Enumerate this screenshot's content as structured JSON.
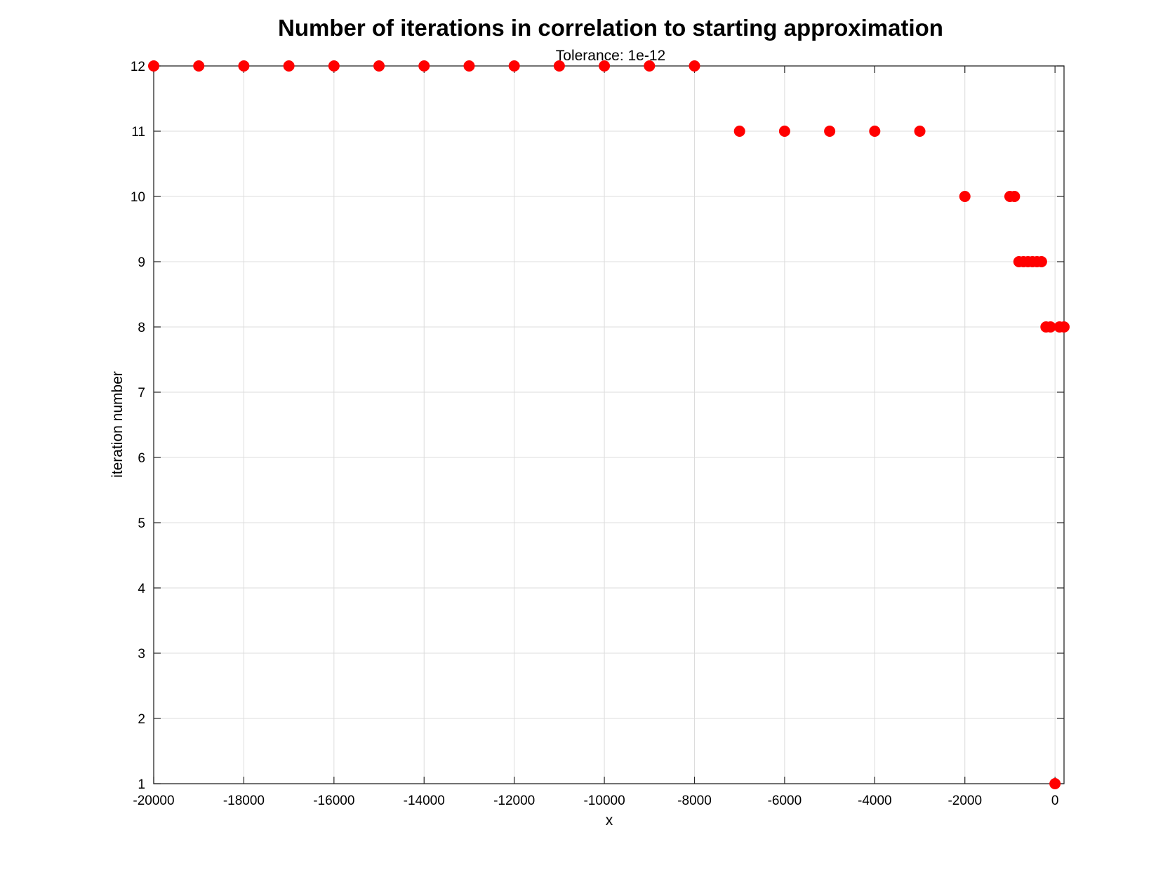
{
  "chart_data": {
    "type": "scatter",
    "title": "Number of iterations in correlation to starting approximation",
    "subtitle": "Tolerance: 1e-12",
    "xlabel": "x",
    "ylabel": "iteration number",
    "xlim": [
      -20000,
      200
    ],
    "ylim": [
      1,
      12
    ],
    "grid": true,
    "marker_color": "#ff0000",
    "x_ticks": [
      -20000,
      -18000,
      -16000,
      -14000,
      -12000,
      -10000,
      -8000,
      -6000,
      -4000,
      -2000,
      0
    ],
    "x_tick_labels": [
      "-20000",
      "-18000",
      "-16000",
      "-14000",
      "-12000",
      "-10000",
      "-8000",
      "-6000",
      "-4000",
      "-2000",
      "0"
    ],
    "y_ticks": [
      1,
      2,
      3,
      4,
      5,
      6,
      7,
      8,
      9,
      10,
      11,
      12
    ],
    "y_tick_labels": [
      "1",
      "2",
      "3",
      "4",
      "5",
      "6",
      "7",
      "8",
      "9",
      "10",
      "11",
      "12"
    ],
    "points": [
      {
        "x": -20000,
        "y": 12
      },
      {
        "x": -19000,
        "y": 12
      },
      {
        "x": -18000,
        "y": 12
      },
      {
        "x": -17000,
        "y": 12
      },
      {
        "x": -16000,
        "y": 12
      },
      {
        "x": -15000,
        "y": 12
      },
      {
        "x": -14000,
        "y": 12
      },
      {
        "x": -13000,
        "y": 12
      },
      {
        "x": -12000,
        "y": 12
      },
      {
        "x": -11000,
        "y": 12
      },
      {
        "x": -10000,
        "y": 12
      },
      {
        "x": -9000,
        "y": 12
      },
      {
        "x": -8000,
        "y": 12
      },
      {
        "x": -7000,
        "y": 11
      },
      {
        "x": -6000,
        "y": 11
      },
      {
        "x": -5000,
        "y": 11
      },
      {
        "x": -4000,
        "y": 11
      },
      {
        "x": -3000,
        "y": 11
      },
      {
        "x": -2000,
        "y": 10
      },
      {
        "x": -1000,
        "y": 10
      },
      {
        "x": -900,
        "y": 10
      },
      {
        "x": -800,
        "y": 9
      },
      {
        "x": -700,
        "y": 9
      },
      {
        "x": -600,
        "y": 9
      },
      {
        "x": -500,
        "y": 9
      },
      {
        "x": -400,
        "y": 9
      },
      {
        "x": -300,
        "y": 9
      },
      {
        "x": -200,
        "y": 8
      },
      {
        "x": -100,
        "y": 8
      },
      {
        "x": 0,
        "y": 1
      },
      {
        "x": 100,
        "y": 8
      },
      {
        "x": 200,
        "y": 8
      }
    ]
  }
}
